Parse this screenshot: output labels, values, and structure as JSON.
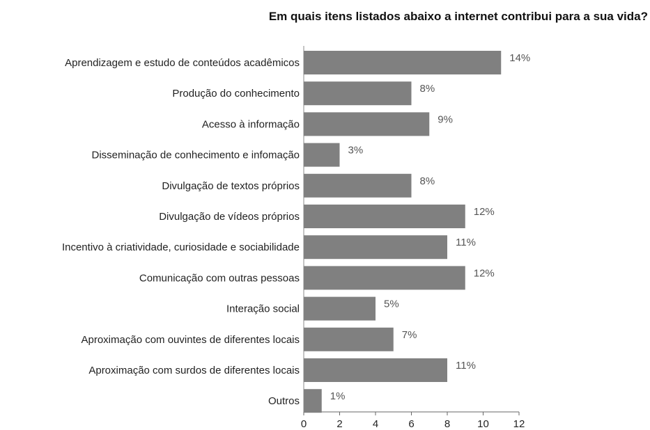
{
  "chart_data": {
    "type": "bar",
    "orientation": "horizontal",
    "title": "Em quais itens listados abaixo a internet contribui para a sua vida?",
    "categories": [
      "Aprendizagem e estudo de conteúdos acadêmicos",
      "Produção do conhecimento",
      "Acesso à informação",
      "Disseminação de conhecimento e infomação",
      "Divulgação de textos próprios",
      "Divulgação de vídeos próprios",
      "Incentivo à criatividade, curiosidade e sociabilidade",
      "Comunicação com outras pessoas",
      "Interação social",
      "Aproximação com ouvintes de diferentes locais",
      "Aproximação com surdos de diferentes locais",
      "Outros"
    ],
    "values": [
      11,
      6,
      7,
      2,
      6,
      9,
      8,
      9,
      4,
      5,
      8,
      1
    ],
    "data_labels": [
      "14%",
      "8%",
      "9%",
      "3%",
      "8%",
      "12%",
      "11%",
      "12%",
      "5%",
      "7%",
      "11%",
      "1%"
    ],
    "xticks": [
      "0",
      "2",
      "4",
      "6",
      "8",
      "10",
      "12"
    ],
    "xlim": [
      0,
      12
    ],
    "xlabel": "",
    "ylabel": "",
    "grid": false,
    "legend": "none",
    "bar_color": "#808080"
  }
}
